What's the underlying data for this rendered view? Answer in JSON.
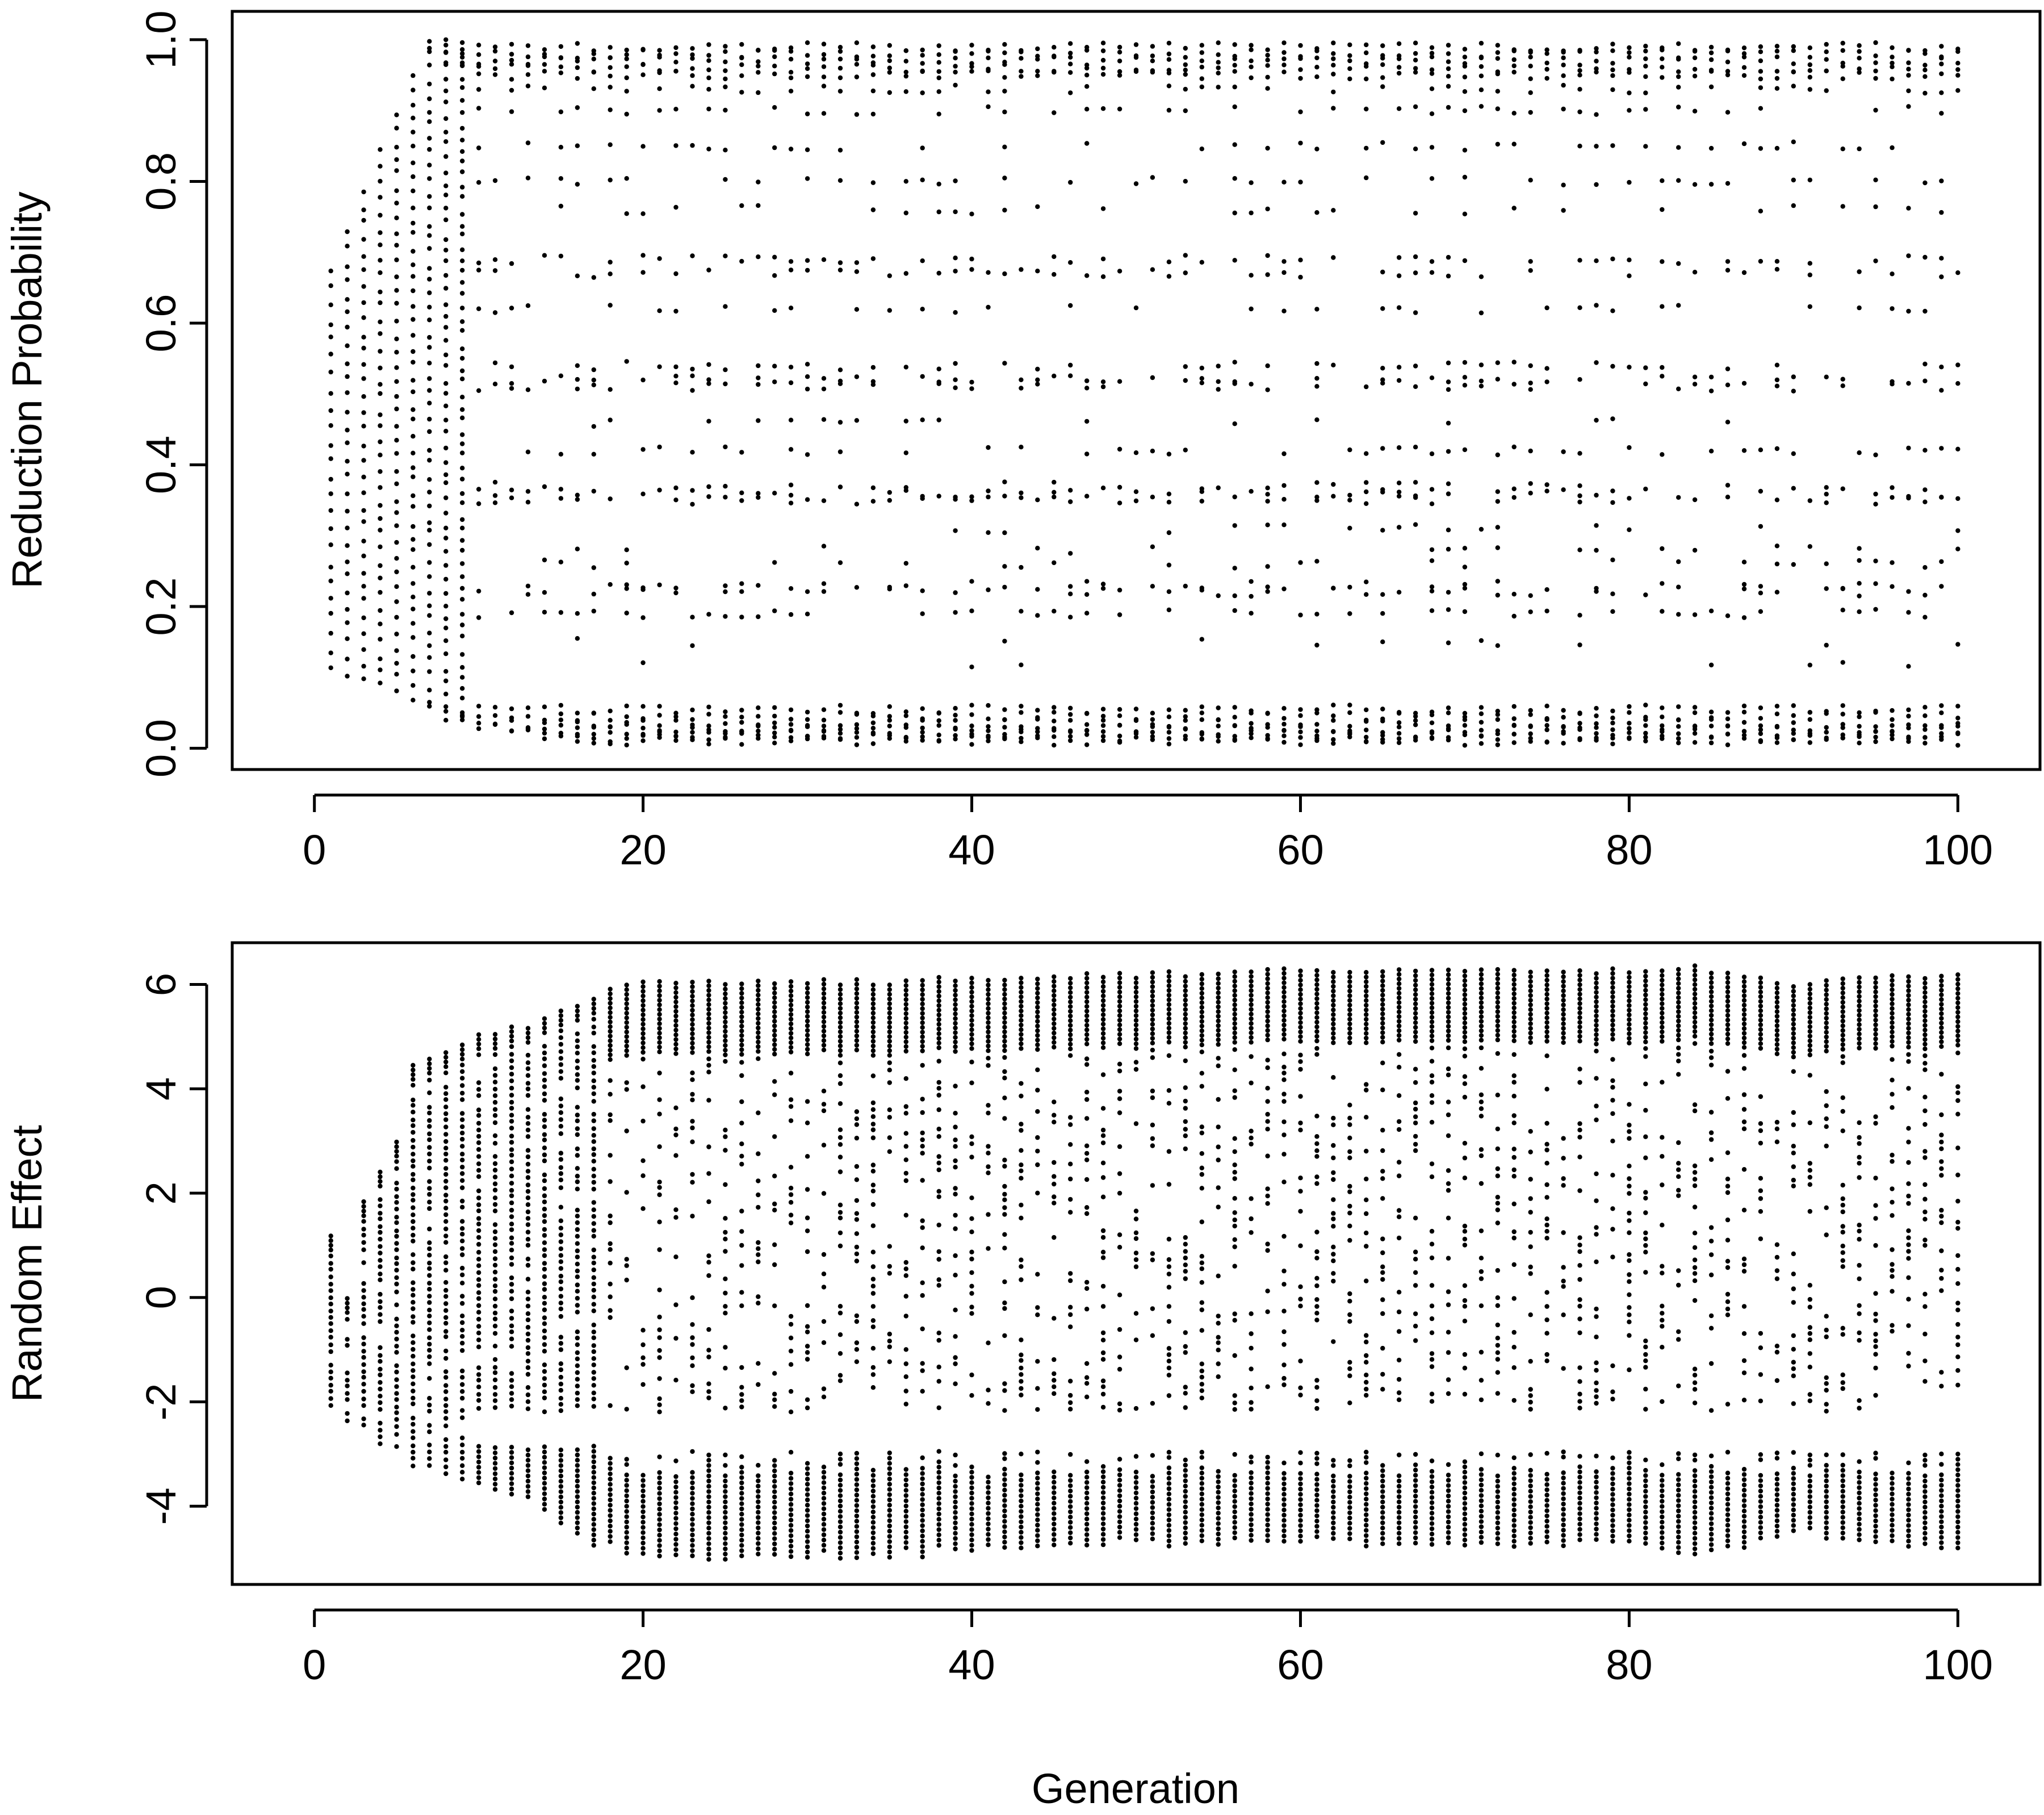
{
  "figure": {
    "xlabel": "Generation"
  },
  "chart_data": [
    {
      "type": "scatter",
      "id": "top",
      "title": "",
      "xlabel": "Generation",
      "ylabel": "Reduction Probability",
      "xlim": [
        -5,
        105
      ],
      "ylim": [
        -0.03,
        1.04
      ],
      "xticks": [
        0,
        20,
        40,
        60,
        80,
        100
      ],
      "xtick_labels": [
        "0",
        "20",
        "40",
        "60",
        "80",
        "100"
      ],
      "yticks": [
        0.0,
        0.2,
        0.4,
        0.6,
        0.8,
        1.0
      ],
      "ytick_labels": [
        "0.0",
        "0.2",
        "0.4",
        "0.6",
        "0.8",
        "1.0"
      ],
      "grid": false,
      "marker_color": "#000000",
      "series": [
        {
          "description_by_generation": [
            {
              "x": 1,
              "y": [
                0.77,
                0.69,
                0.62,
                0.55,
                0.48,
                0.41,
                0.34,
                0.27,
                0.2,
                0.14,
                0.11
              ]
            },
            {
              "x": 2,
              "y": [
                0.67,
                0.6,
                0.52,
                0.45,
                0.38,
                0.31,
                0.24,
                0.17,
                0.12,
                0.09
              ]
            },
            {
              "x": 3,
              "y": [
                0.84,
                0.77,
                0.7,
                0.62,
                0.55,
                0.48,
                0.41,
                0.34,
                0.27,
                0.2,
                0.14,
                0.09
              ]
            },
            {
              "x": 4,
              "y": [
                0.93,
                0.85,
                0.78,
                0.7,
                0.62,
                0.55,
                0.47,
                0.4,
                0.33,
                0.26,
                0.19,
                0.13,
                0.08
              ]
            },
            {
              "x": 5,
              "y": [
                0.97,
                0.9,
                0.82,
                0.74,
                0.66,
                0.58,
                0.5,
                0.42,
                0.34,
                0.26,
                0.18,
                0.11,
                0.07
              ]
            },
            {
              "x": 6,
              "y": [
                0.99,
                0.92,
                0.84,
                0.76,
                0.68,
                0.6,
                0.52,
                0.44,
                0.36,
                0.28,
                0.2,
                0.12,
                0.06,
                0.05
              ]
            },
            {
              "x": 8,
              "y": [
                1.0,
                0.96,
                0.9,
                0.8,
                0.7,
                0.62,
                0.52,
                0.42,
                0.36,
                0.28,
                0.2,
                0.1,
                0.05,
                0.04
              ]
            },
            {
              "x": 10,
              "y": [
                1.0,
                0.97,
                0.91,
                0.8,
                0.7,
                0.61,
                0.52,
                0.42,
                0.36,
                0.28,
                0.2,
                0.13,
                0.04,
                0.03
              ]
            },
            {
              "x": 14,
              "y": [
                1.0,
                0.97,
                0.92,
                0.82,
                0.68,
                0.62,
                0.52,
                0.42,
                0.36,
                0.28,
                0.22,
                0.18,
                0.09,
                0.03,
                0.02
              ]
            },
            {
              "x": 18,
              "y": [
                1.0,
                0.98,
                0.95,
                0.85,
                0.8,
                0.68,
                0.52,
                0.42,
                0.36,
                0.29,
                0.22,
                0.18,
                0.1,
                0.05,
                0.02,
                0.01
              ]
            },
            {
              "x": 20,
              "y": [
                1.0,
                0.98,
                0.95,
                0.9,
                0.85,
                0.8,
                0.68,
                0.52,
                0.42,
                0.36,
                0.28,
                0.22,
                0.18,
                0.05,
                0.03,
                0.02,
                0.01
              ]
            },
            {
              "x": 40,
              "y": [
                1.0,
                0.98,
                0.96,
                0.9,
                0.85,
                0.8,
                0.76,
                0.68,
                0.62,
                0.52,
                0.42,
                0.36,
                0.28,
                0.22,
                0.18,
                0.05,
                0.03,
                0.02,
                0.01
              ]
            },
            {
              "x": 60,
              "y": [
                1.0,
                0.98,
                0.96,
                0.9,
                0.85,
                0.8,
                0.76,
                0.68,
                0.62,
                0.52,
                0.42,
                0.36,
                0.28,
                0.22,
                0.18,
                0.05,
                0.03,
                0.02,
                0.01
              ]
            },
            {
              "x": 80,
              "y": [
                1.0,
                0.98,
                0.96,
                0.9,
                0.85,
                0.8,
                0.76,
                0.68,
                0.62,
                0.52,
                0.42,
                0.36,
                0.28,
                0.22,
                0.18,
                0.05,
                0.03,
                0.02,
                0.01
              ]
            },
            {
              "x": 100,
              "y": [
                1.0,
                0.98,
                0.96,
                0.9,
                0.85,
                0.79,
                0.68,
                0.62,
                0.52,
                0.42,
                0.36,
                0.22,
                0.15,
                0.04,
                0.03,
                0.02,
                0.01
              ]
            }
          ]
        }
      ],
      "generations": {
        "from": 1,
        "to": 100,
        "step": 1
      },
      "bands": [
        {
          "value": 0.99,
          "start": 7
        },
        {
          "value": 0.98,
          "start": 8
        },
        {
          "value": 0.97,
          "start": 8
        },
        {
          "value": 0.96,
          "start": 9
        },
        {
          "value": 0.95,
          "start": 10
        },
        {
          "value": 0.93,
          "start": 10,
          "density": 0.6
        },
        {
          "value": 0.9,
          "start": 10,
          "density": 0.55
        },
        {
          "value": 0.85,
          "start": 10,
          "density": 0.45
        },
        {
          "value": 0.8,
          "start": 10,
          "density": 0.45
        },
        {
          "value": 0.76,
          "start": 10,
          "density": 0.3
        },
        {
          "value": 0.69,
          "start": 10,
          "density": 0.55
        },
        {
          "value": 0.67,
          "start": 10,
          "density": 0.55
        },
        {
          "value": 0.62,
          "start": 10,
          "density": 0.35
        },
        {
          "value": 0.54,
          "start": 10,
          "density": 0.55
        },
        {
          "value": 0.52,
          "start": 10,
          "density": 0.7
        },
        {
          "value": 0.51,
          "start": 10,
          "density": 0.5
        },
        {
          "value": 0.46,
          "start": 10,
          "density": 0.15
        },
        {
          "value": 0.42,
          "start": 10,
          "density": 0.45
        },
        {
          "value": 0.37,
          "start": 10,
          "density": 0.45
        },
        {
          "value": 0.36,
          "start": 10,
          "density": 0.6
        },
        {
          "value": 0.35,
          "start": 10,
          "density": 0.6
        },
        {
          "value": 0.31,
          "start": 10,
          "density": 0.2
        },
        {
          "value": 0.28,
          "start": 10,
          "density": 0.25
        },
        {
          "value": 0.26,
          "start": 10,
          "density": 0.3
        },
        {
          "value": 0.23,
          "start": 10,
          "density": 0.45
        },
        {
          "value": 0.22,
          "start": 10,
          "density": 0.55
        },
        {
          "value": 0.19,
          "start": 10,
          "density": 0.55
        },
        {
          "value": 0.15,
          "start": 10,
          "density": 0.15
        },
        {
          "value": 0.12,
          "start": 10,
          "density": 0.06
        },
        {
          "value": 0.055,
          "start": 7
        },
        {
          "value": 0.045,
          "start": 8
        },
        {
          "value": 0.035,
          "start": 9
        },
        {
          "value": 0.028,
          "start": 10
        },
        {
          "value": 0.021,
          "start": 12
        },
        {
          "value": 0.015,
          "start": 14
        },
        {
          "value": 0.01,
          "start": 16
        }
      ]
    },
    {
      "type": "scatter",
      "id": "bottom",
      "title": "",
      "xlabel": "Generation",
      "ylabel": "Random Effect",
      "xlim": [
        -5,
        105
      ],
      "ylim": [
        -5.5,
        6.8
      ],
      "xticks": [
        0,
        20,
        40,
        60,
        80,
        100
      ],
      "xtick_labels": [
        "0",
        "20",
        "40",
        "60",
        "80",
        "100"
      ],
      "yticks": [
        -4,
        -2,
        0,
        2,
        4,
        6
      ],
      "ytick_labels": [
        "-4",
        "-2",
        "0",
        "2",
        "4",
        "6"
      ],
      "grid": false,
      "marker_color": "#000000",
      "generations": {
        "from": 1,
        "to": 100,
        "step": 1
      },
      "envelope": [
        {
          "x": 1,
          "ymin": -2.3,
          "ymax": 1.2
        },
        {
          "x": 2,
          "ymin": -2.4,
          "ymax": 0.0
        },
        {
          "x": 3,
          "ymin": -2.6,
          "ymax": 1.8
        },
        {
          "x": 5,
          "ymin": -3.0,
          "ymax": 3.0
        },
        {
          "x": 6,
          "ymin": -3.2,
          "ymax": 4.5
        },
        {
          "x": 8,
          "ymin": -3.4,
          "ymax": 4.7
        },
        {
          "x": 10,
          "ymin": -3.6,
          "ymax": 5.0
        },
        {
          "x": 13,
          "ymin": -3.9,
          "ymax": 5.2
        },
        {
          "x": 16,
          "ymin": -4.6,
          "ymax": 5.6
        },
        {
          "x": 18,
          "ymin": -4.8,
          "ymax": 5.9
        },
        {
          "x": 20,
          "ymin": -5.0,
          "ymax": 6.05
        },
        {
          "x": 35,
          "ymin": -5.0,
          "ymax": 6.05
        },
        {
          "x": 40,
          "ymin": -4.8,
          "ymax": 6.1
        },
        {
          "x": 60,
          "ymin": -4.7,
          "ymax": 6.25
        },
        {
          "x": 70,
          "ymin": -4.8,
          "ymax": 6.3
        },
        {
          "x": 80,
          "ymin": -4.7,
          "ymax": 6.25
        },
        {
          "x": 84,
          "ymin": -5.0,
          "ymax": 6.3
        },
        {
          "x": 90,
          "ymin": -4.5,
          "ymax": 6.0
        },
        {
          "x": 100,
          "ymin": -4.9,
          "ymax": 6.2
        }
      ],
      "gap": {
        "from_generation": 10,
        "upper_edge": -2.5,
        "lower_edge": -2.9
      }
    }
  ]
}
